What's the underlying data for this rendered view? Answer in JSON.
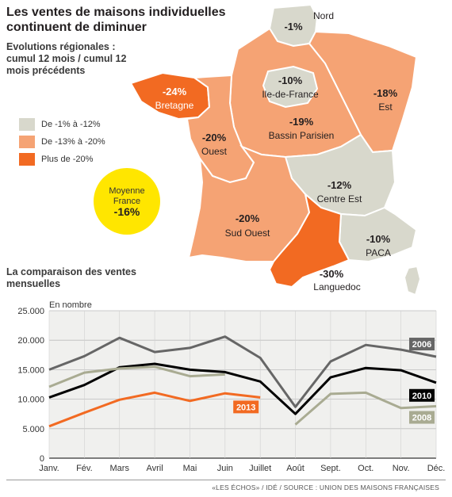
{
  "title": "Les ventes de maisons individuelles continuent de diminuer",
  "map_subtitle": "Evolutions régionales : cumul 12 mois / cumul 12 mois précédents",
  "colors": {
    "light": "#d8d8cc",
    "medium": "#f5a374",
    "dark": "#f26a22",
    "avg": "#ffe600"
  },
  "legend": [
    {
      "label": "De -1% à -12%",
      "color": "#d8d8cc"
    },
    {
      "label": "De -13% à -20%",
      "color": "#f5a374"
    },
    {
      "label": "Plus de -20%",
      "color": "#f26a22"
    }
  ],
  "average": {
    "label1": "Moyenne",
    "label2": "France",
    "value": "-16%"
  },
  "regions": [
    {
      "name": "Nord",
      "value": "-1%",
      "class": "light"
    },
    {
      "name": "Ile-de-France",
      "value": "-10%",
      "class": "light"
    },
    {
      "name": "Bretagne",
      "value": "-24%",
      "class": "dark"
    },
    {
      "name": "Est",
      "value": "-18%",
      "class": "medium"
    },
    {
      "name": "Bassin Parisien",
      "value": "-19%",
      "class": "medium"
    },
    {
      "name": "Ouest",
      "value": "-20%",
      "class": "medium"
    },
    {
      "name": "Centre Est",
      "value": "-12%",
      "class": "light"
    },
    {
      "name": "Sud Ouest",
      "value": "-20%",
      "class": "medium"
    },
    {
      "name": "PACA",
      "value": "-10%",
      "class": "light"
    },
    {
      "name": "Languedoc",
      "value": "-30%",
      "class": "dark"
    }
  ],
  "chart_section_title": "La comparaison des ventes mensuelles",
  "chart_data": {
    "type": "line",
    "ylabel": "En nombre",
    "ylim": [
      0,
      25000
    ],
    "yticks": [
      "0",
      "5.000",
      "10.000",
      "15.000",
      "20.000",
      "25.000"
    ],
    "categories": [
      "Janv.",
      "Fév.",
      "Mars",
      "Avril",
      "Mai",
      "Juin",
      "Juillet",
      "Août",
      "Sept.",
      "Oct.",
      "Nov.",
      "Déc."
    ],
    "grid": true,
    "series": [
      {
        "name": "2006",
        "color": "#666666",
        "values": [
          15000,
          17300,
          20400,
          18000,
          18700,
          20600,
          17000,
          8700,
          16400,
          19200,
          18400,
          17200
        ]
      },
      {
        "name": "2010",
        "color": "#000000",
        "values": [
          10300,
          12400,
          15400,
          16000,
          15000,
          14600,
          13000,
          7500,
          13700,
          15300,
          14900,
          12800
        ]
      },
      {
        "name": "2008",
        "color": "#a9ab92",
        "values": [
          12100,
          14500,
          15200,
          15500,
          13900,
          14200,
          null,
          5700,
          10900,
          11100,
          8500,
          8800
        ]
      },
      {
        "name": "2013",
        "color": "#f26a22",
        "values": [
          5400,
          7700,
          9900,
          11100,
          9700,
          11000,
          10300,
          null,
          null,
          null,
          null,
          null
        ]
      }
    ]
  },
  "source": "«LES ÉCHOS» / IDÉ / SOURCE : UNION DES MAISONS FRANÇAISES"
}
